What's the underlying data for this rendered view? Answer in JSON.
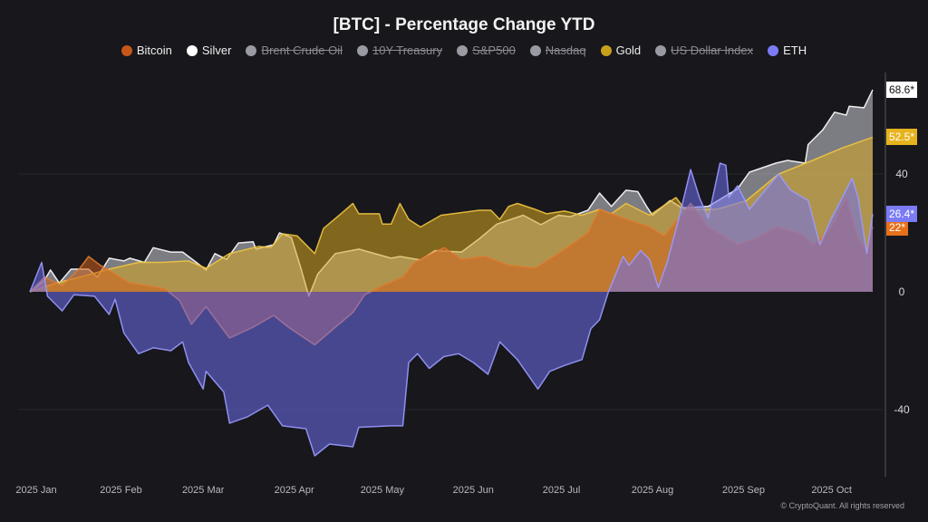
{
  "chart_data": {
    "type": "area",
    "title": "[BTC] - Percentage Change YTD",
    "xlabel": "",
    "ylabel": "",
    "xlim": [
      "2025-01-01",
      "2025-10-15"
    ],
    "ylim": [
      -62,
      74
    ],
    "y_ticks": [
      40,
      0,
      -40
    ],
    "x_ticks": [
      {
        "date": "2025-01-01",
        "label": "2025 Jan"
      },
      {
        "date": "2025-02-01",
        "label": "2025 Feb"
      },
      {
        "date": "2025-03-01",
        "label": "2025 Mar"
      },
      {
        "date": "2025-04-01",
        "label": "2025 Apr"
      },
      {
        "date": "2025-05-01",
        "label": "2025 May"
      },
      {
        "date": "2025-06-01",
        "label": "2025 Jun"
      },
      {
        "date": "2025-07-01",
        "label": "2025 Jul"
      },
      {
        "date": "2025-08-01",
        "label": "2025 Aug"
      },
      {
        "date": "2025-09-01",
        "label": "2025 Sep"
      },
      {
        "date": "2025-10-01",
        "label": "2025 Oct"
      }
    ],
    "grid": true,
    "legend_position": "top",
    "legend": [
      {
        "name": "Bitcoin",
        "color": "#c8561a",
        "hidden": false
      },
      {
        "name": "Silver",
        "color": "#ffffff",
        "hidden": false
      },
      {
        "name": "Brent Crude Oil",
        "color": "#9a9aa2",
        "hidden": true
      },
      {
        "name": "10Y Treasury",
        "color": "#9a9aa2",
        "hidden": true
      },
      {
        "name": "S&P500",
        "color": "#9a9aa2",
        "hidden": true
      },
      {
        "name": "Nasdaq",
        "color": "#9a9aa2",
        "hidden": true
      },
      {
        "name": "Gold",
        "color": "#c9a01c",
        "hidden": false
      },
      {
        "name": "US Dollar Index",
        "color": "#9a9aa2",
        "hidden": true
      },
      {
        "name": "ETH",
        "color": "#7b7bf5",
        "hidden": false
      }
    ],
    "series": [
      {
        "name": "Silver",
        "color": "#d0d0d8",
        "line": "#ffffff",
        "last_label": "68.6*",
        "badge_bg": "#ffffff",
        "badge_fg": "#111111",
        "points": [
          [
            "2025-01-01",
            0
          ],
          [
            "2025-01-06",
            4
          ],
          [
            "2025-01-08",
            7.4
          ],
          [
            "2025-01-11",
            3
          ],
          [
            "2025-01-15",
            7.7
          ],
          [
            "2025-01-21",
            7.7
          ],
          [
            "2025-01-24",
            5
          ],
          [
            "2025-01-28",
            11.4
          ],
          [
            "2025-02-02",
            10.5
          ],
          [
            "2025-02-04",
            11.4
          ],
          [
            "2025-02-09",
            10
          ],
          [
            "2025-02-12",
            15
          ],
          [
            "2025-02-18",
            13.5
          ],
          [
            "2025-02-22",
            13.5
          ],
          [
            "2025-02-26",
            10.5
          ],
          [
            "2025-03-02",
            7.4
          ],
          [
            "2025-03-05",
            13
          ],
          [
            "2025-03-09",
            11
          ],
          [
            "2025-03-13",
            16.6
          ],
          [
            "2025-03-18",
            17
          ],
          [
            "2025-03-19",
            14.5
          ],
          [
            "2025-03-25",
            16
          ],
          [
            "2025-03-27",
            20
          ],
          [
            "2025-03-31",
            18.5
          ],
          [
            "2025-04-03",
            9
          ],
          [
            "2025-04-06",
            -1.5
          ],
          [
            "2025-04-09",
            6
          ],
          [
            "2025-04-15",
            13
          ],
          [
            "2025-04-23",
            14.5
          ],
          [
            "2025-05-04",
            11.4
          ],
          [
            "2025-05-07",
            12
          ],
          [
            "2025-05-14",
            10.8
          ],
          [
            "2025-05-19",
            14
          ],
          [
            "2025-05-28",
            13.5
          ],
          [
            "2025-06-03",
            18
          ],
          [
            "2025-06-09",
            23
          ],
          [
            "2025-06-18",
            26
          ],
          [
            "2025-06-24",
            22.8
          ],
          [
            "2025-06-30",
            26
          ],
          [
            "2025-07-04",
            25.5
          ],
          [
            "2025-07-10",
            27.7
          ],
          [
            "2025-07-14",
            33.5
          ],
          [
            "2025-07-18",
            29
          ],
          [
            "2025-07-23",
            34.5
          ],
          [
            "2025-07-27",
            34
          ],
          [
            "2025-07-30",
            29
          ],
          [
            "2025-08-01",
            26
          ],
          [
            "2025-08-07",
            31
          ],
          [
            "2025-08-11",
            28.5
          ],
          [
            "2025-08-20",
            29
          ],
          [
            "2025-08-30",
            35
          ],
          [
            "2025-09-03",
            40.6
          ],
          [
            "2025-09-12",
            43.7
          ],
          [
            "2025-09-16",
            44.6
          ],
          [
            "2025-09-22",
            43.7
          ],
          [
            "2025-09-23",
            50
          ],
          [
            "2025-09-28",
            55
          ],
          [
            "2025-10-02",
            61
          ],
          [
            "2025-10-06",
            60
          ],
          [
            "2025-10-07",
            63
          ],
          [
            "2025-10-12",
            62.5
          ],
          [
            "2025-10-15",
            68.6
          ]
        ]
      },
      {
        "name": "Gold",
        "color": "#d9a820",
        "line": "#f0c540",
        "last_label": "52.5*",
        "badge_bg": "#e6b31e",
        "badge_fg": "#ffffff",
        "points": [
          [
            "2025-01-01",
            0
          ],
          [
            "2025-01-10",
            3
          ],
          [
            "2025-01-18",
            5
          ],
          [
            "2025-01-28",
            7.7
          ],
          [
            "2025-02-07",
            10
          ],
          [
            "2025-02-15",
            10
          ],
          [
            "2025-02-24",
            10.5
          ],
          [
            "2025-03-02",
            8
          ],
          [
            "2025-03-10",
            13
          ],
          [
            "2025-03-20",
            15.4
          ],
          [
            "2025-03-24",
            15
          ],
          [
            "2025-03-28",
            19.7
          ],
          [
            "2025-04-02",
            19
          ],
          [
            "2025-04-08",
            13
          ],
          [
            "2025-04-11",
            21.5
          ],
          [
            "2025-04-18",
            27.4
          ],
          [
            "2025-04-21",
            30
          ],
          [
            "2025-04-23",
            26.5
          ],
          [
            "2025-04-30",
            26.5
          ],
          [
            "2025-05-01",
            23
          ],
          [
            "2025-05-04",
            23
          ],
          [
            "2025-05-07",
            30
          ],
          [
            "2025-05-10",
            24.6
          ],
          [
            "2025-05-14",
            22
          ],
          [
            "2025-05-21",
            26
          ],
          [
            "2025-06-03",
            27.7
          ],
          [
            "2025-06-07",
            27.7
          ],
          [
            "2025-06-10",
            24.6
          ],
          [
            "2025-06-13",
            29
          ],
          [
            "2025-06-16",
            30
          ],
          [
            "2025-06-22",
            28
          ],
          [
            "2025-06-26",
            26.5
          ],
          [
            "2025-07-02",
            27.4
          ],
          [
            "2025-07-08",
            26
          ],
          [
            "2025-07-14",
            28
          ],
          [
            "2025-07-18",
            26.5
          ],
          [
            "2025-07-23",
            30
          ],
          [
            "2025-07-31",
            26
          ],
          [
            "2025-08-09",
            32
          ],
          [
            "2025-08-12",
            28
          ],
          [
            "2025-08-23",
            28
          ],
          [
            "2025-09-02",
            31
          ],
          [
            "2025-09-13",
            40
          ],
          [
            "2025-09-23",
            44
          ],
          [
            "2025-10-05",
            49
          ],
          [
            "2025-10-15",
            52.5
          ]
        ]
      },
      {
        "name": "Bitcoin",
        "color": "#d0611c",
        "line": "#e07a30",
        "last_label": "22*",
        "badge_bg": "#e8701a",
        "badge_fg": "#ffffff",
        "points": [
          [
            "2025-01-01",
            0
          ],
          [
            "2025-01-06",
            5
          ],
          [
            "2025-01-12",
            2
          ],
          [
            "2025-01-18",
            8
          ],
          [
            "2025-01-21",
            12
          ],
          [
            "2025-01-25",
            9
          ],
          [
            "2025-01-30",
            6
          ],
          [
            "2025-02-04",
            3
          ],
          [
            "2025-02-10",
            2
          ],
          [
            "2025-02-16",
            1
          ],
          [
            "2025-02-21",
            -3
          ],
          [
            "2025-02-25",
            -11
          ],
          [
            "2025-03-02",
            -5
          ],
          [
            "2025-03-10",
            -15.7
          ],
          [
            "2025-03-18",
            -12
          ],
          [
            "2025-03-25",
            -8
          ],
          [
            "2025-03-30",
            -12
          ],
          [
            "2025-04-08",
            -18
          ],
          [
            "2025-04-15",
            -12
          ],
          [
            "2025-04-21",
            -7
          ],
          [
            "2025-04-25",
            -1
          ],
          [
            "2025-05-01",
            2
          ],
          [
            "2025-05-08",
            5
          ],
          [
            "2025-05-12",
            10
          ],
          [
            "2025-05-22",
            15
          ],
          [
            "2025-05-28",
            11
          ],
          [
            "2025-06-05",
            12
          ],
          [
            "2025-06-13",
            9
          ],
          [
            "2025-06-22",
            8
          ],
          [
            "2025-06-30",
            13
          ],
          [
            "2025-07-10",
            20
          ],
          [
            "2025-07-14",
            28
          ],
          [
            "2025-07-22",
            25
          ],
          [
            "2025-07-31",
            22
          ],
          [
            "2025-08-05",
            19
          ],
          [
            "2025-08-14",
            30
          ],
          [
            "2025-08-20",
            22
          ],
          [
            "2025-08-30",
            16
          ],
          [
            "2025-09-05",
            18
          ],
          [
            "2025-09-12",
            22
          ],
          [
            "2025-09-20",
            20
          ],
          [
            "2025-09-25",
            16
          ],
          [
            "2025-10-01",
            22
          ],
          [
            "2025-10-06",
            32
          ],
          [
            "2025-10-10",
            18
          ],
          [
            "2025-10-13",
            14
          ],
          [
            "2025-10-15",
            22
          ]
        ]
      },
      {
        "name": "ETH",
        "color": "#6f6ff0",
        "line": "#9a9aff",
        "last_label": "26.4*",
        "badge_bg": "#7b7bf5",
        "badge_fg": "#ffffff",
        "points": [
          [
            "2025-01-01",
            0
          ],
          [
            "2025-01-05",
            10
          ],
          [
            "2025-01-07",
            -1.5
          ],
          [
            "2025-01-12",
            -6.5
          ],
          [
            "2025-01-16",
            -1
          ],
          [
            "2025-01-23",
            -1.5
          ],
          [
            "2025-01-28",
            -7.7
          ],
          [
            "2025-01-30",
            -2.5
          ],
          [
            "2025-02-02",
            -14
          ],
          [
            "2025-02-07",
            -21
          ],
          [
            "2025-02-12",
            -19
          ],
          [
            "2025-02-18",
            -20
          ],
          [
            "2025-02-22",
            -17
          ],
          [
            "2025-02-24",
            -24
          ],
          [
            "2025-03-01",
            -33
          ],
          [
            "2025-03-02",
            -27
          ],
          [
            "2025-03-08",
            -34
          ],
          [
            "2025-03-10",
            -44.6
          ],
          [
            "2025-03-16",
            -42.5
          ],
          [
            "2025-03-23",
            -38.5
          ],
          [
            "2025-03-28",
            -45.5
          ],
          [
            "2025-04-05",
            -46.5
          ],
          [
            "2025-04-08",
            -55.7
          ],
          [
            "2025-04-13",
            -51.7
          ],
          [
            "2025-04-21",
            -52.6
          ],
          [
            "2025-04-23",
            -46
          ],
          [
            "2025-05-04",
            -45.5
          ],
          [
            "2025-05-08",
            -45.5
          ],
          [
            "2025-05-10",
            -24
          ],
          [
            "2025-05-13",
            -21
          ],
          [
            "2025-05-17",
            -26
          ],
          [
            "2025-05-22",
            -22
          ],
          [
            "2025-05-27",
            -21
          ],
          [
            "2025-06-01",
            -24
          ],
          [
            "2025-06-06",
            -28
          ],
          [
            "2025-06-10",
            -17
          ],
          [
            "2025-06-16",
            -23
          ],
          [
            "2025-06-23",
            -33
          ],
          [
            "2025-06-27",
            -27
          ],
          [
            "2025-07-02",
            -25
          ],
          [
            "2025-07-08",
            -23
          ],
          [
            "2025-07-11",
            -12.6
          ],
          [
            "2025-07-14",
            -9.5
          ],
          [
            "2025-07-17",
            0
          ],
          [
            "2025-07-22",
            12
          ],
          [
            "2025-07-24",
            9
          ],
          [
            "2025-07-28",
            14
          ],
          [
            "2025-07-31",
            11
          ],
          [
            "2025-08-03",
            1.5
          ],
          [
            "2025-08-06",
            10
          ],
          [
            "2025-08-10",
            25
          ],
          [
            "2025-08-14",
            41.5
          ],
          [
            "2025-08-17",
            32
          ],
          [
            "2025-08-20",
            25
          ],
          [
            "2025-08-24",
            43.7
          ],
          [
            "2025-08-26",
            43
          ],
          [
            "2025-08-27",
            32
          ],
          [
            "2025-08-30",
            36
          ],
          [
            "2025-09-03",
            28
          ],
          [
            "2025-09-13",
            40
          ],
          [
            "2025-09-17",
            34.5
          ],
          [
            "2025-09-23",
            31
          ],
          [
            "2025-09-27",
            16
          ],
          [
            "2025-10-01",
            25
          ],
          [
            "2025-10-08",
            38.5
          ],
          [
            "2025-10-10",
            32
          ],
          [
            "2025-10-13",
            13
          ],
          [
            "2025-10-15",
            26.4
          ]
        ]
      }
    ]
  },
  "footer": "© CryptoQuant. All rights reserved"
}
